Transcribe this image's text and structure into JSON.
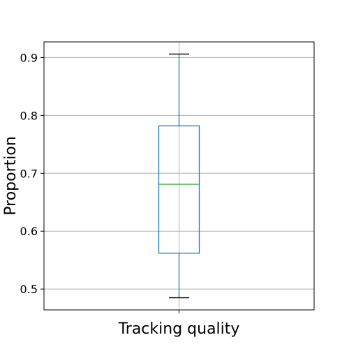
{
  "chart_data": {
    "type": "box",
    "title": "",
    "xlabel": "",
    "ylabel": "Proportion",
    "categories": [
      "Tracking quality"
    ],
    "grid": true,
    "ylim": [
      0.464,
      0.927
    ],
    "yticks": [
      0.5,
      0.6,
      0.7,
      0.8,
      0.9
    ],
    "ytick_labels": [
      "0.5",
      "0.6",
      "0.7",
      "0.8",
      "0.9"
    ],
    "boxes": [
      {
        "category": "Tracking quality",
        "whisker_low": 0.485,
        "q1": 0.562,
        "median": 0.681,
        "q3": 0.782,
        "whisker_high": 0.906
      }
    ],
    "colors": {
      "box": "#1f77b4",
      "median": "#2ca02c",
      "caps": "#000000",
      "grid": "#b0b0b0",
      "frame": "#000000"
    }
  }
}
